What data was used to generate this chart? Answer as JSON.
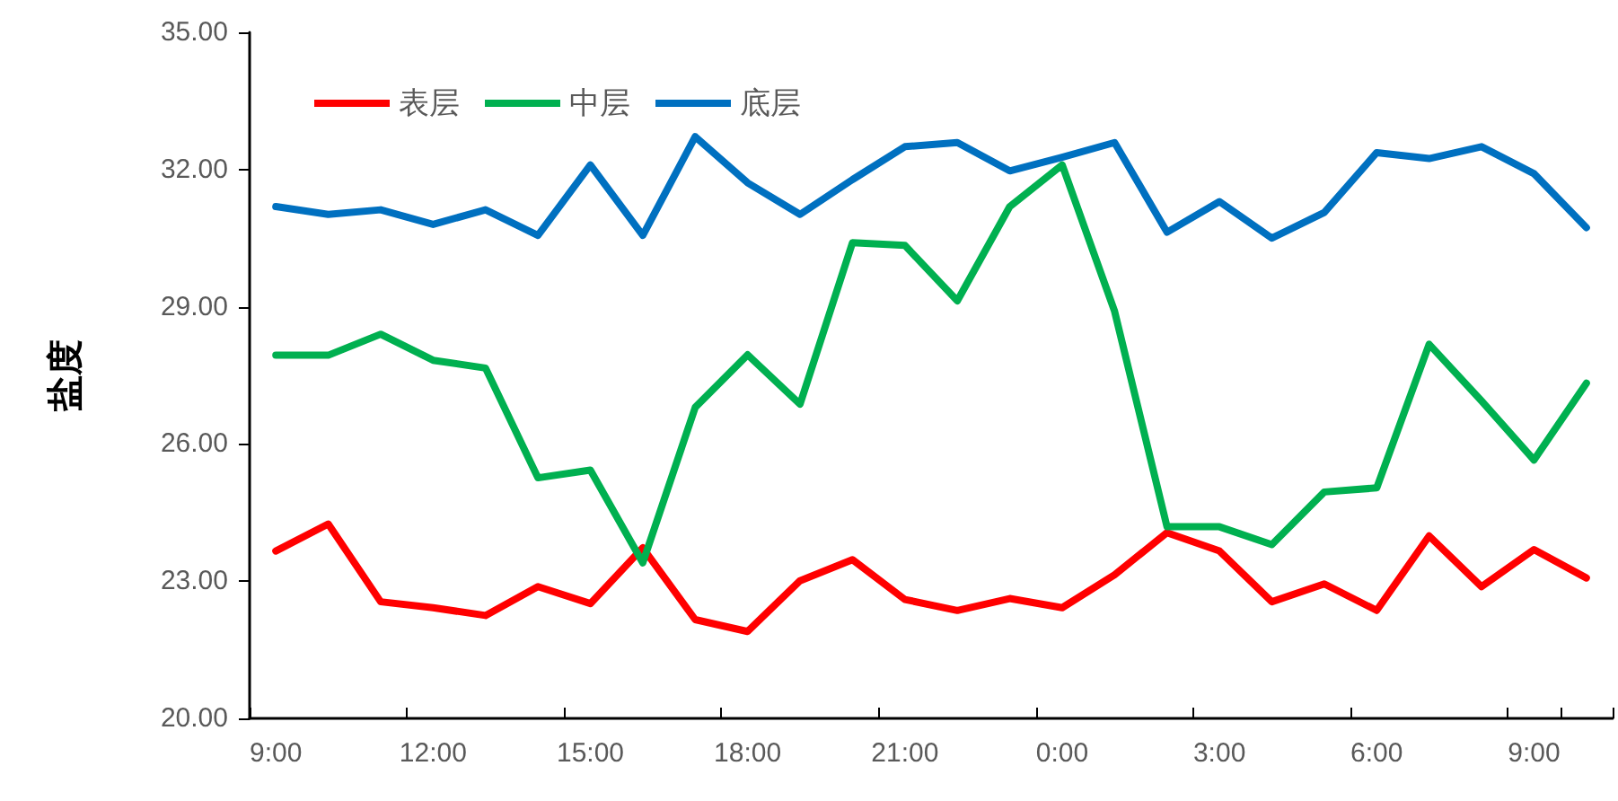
{
  "chart_data": {
    "type": "line",
    "ylabel": "盐度",
    "categories": [
      "9:00",
      null,
      null,
      "12:00",
      null,
      null,
      "15:00",
      null,
      null,
      "18:00",
      null,
      null,
      "21:00",
      null,
      null,
      "0:00",
      null,
      null,
      "3:00",
      null,
      null,
      "6:00",
      null,
      null,
      "9:00",
      null
    ],
    "series": [
      {
        "name": "表层",
        "color": "#ff0000",
        "values": [
          23.66,
          24.25,
          22.55,
          22.42,
          22.25,
          22.88,
          22.51,
          23.73,
          22.16,
          21.9,
          23.01,
          23.47,
          22.6,
          22.36,
          22.62,
          22.42,
          23.14,
          24.06,
          23.66,
          22.55,
          22.94,
          22.36,
          23.99,
          22.88,
          23.69,
          23.07
        ]
      },
      {
        "name": "中层",
        "color": "#00b050",
        "values": [
          27.94,
          27.94,
          28.4,
          27.83,
          27.66,
          25.26,
          25.43,
          23.4,
          26.8,
          27.95,
          26.87,
          30.4,
          30.34,
          29.13,
          31.19,
          32.1,
          28.9,
          24.19,
          24.19,
          23.8,
          24.95,
          25.04,
          28.18,
          26.94,
          25.65,
          27.33
        ]
      },
      {
        "name": "底层",
        "color": "#0070c0",
        "values": [
          31.19,
          31.02,
          31.12,
          30.8,
          31.12,
          30.56,
          32.1,
          30.56,
          32.72,
          31.71,
          31.02,
          31.78,
          32.5,
          32.59,
          31.97,
          32.27,
          32.59,
          30.63,
          31.3,
          30.5,
          31.06,
          32.37,
          32.24,
          32.5,
          31.91,
          30.73
        ]
      }
    ],
    "ylim": [
      20,
      35
    ],
    "yticks": [
      {
        "value": 20,
        "label": "20.00"
      },
      {
        "value": 23,
        "label": "23.00"
      },
      {
        "value": 26,
        "label": "26.00"
      },
      {
        "value": 29,
        "label": "29.00"
      },
      {
        "value": 32,
        "label": "32.00"
      },
      {
        "value": 35,
        "label": "35.00"
      }
    ],
    "grid": false,
    "legend": "top left",
    "marker": "none",
    "line_style": "solid"
  }
}
